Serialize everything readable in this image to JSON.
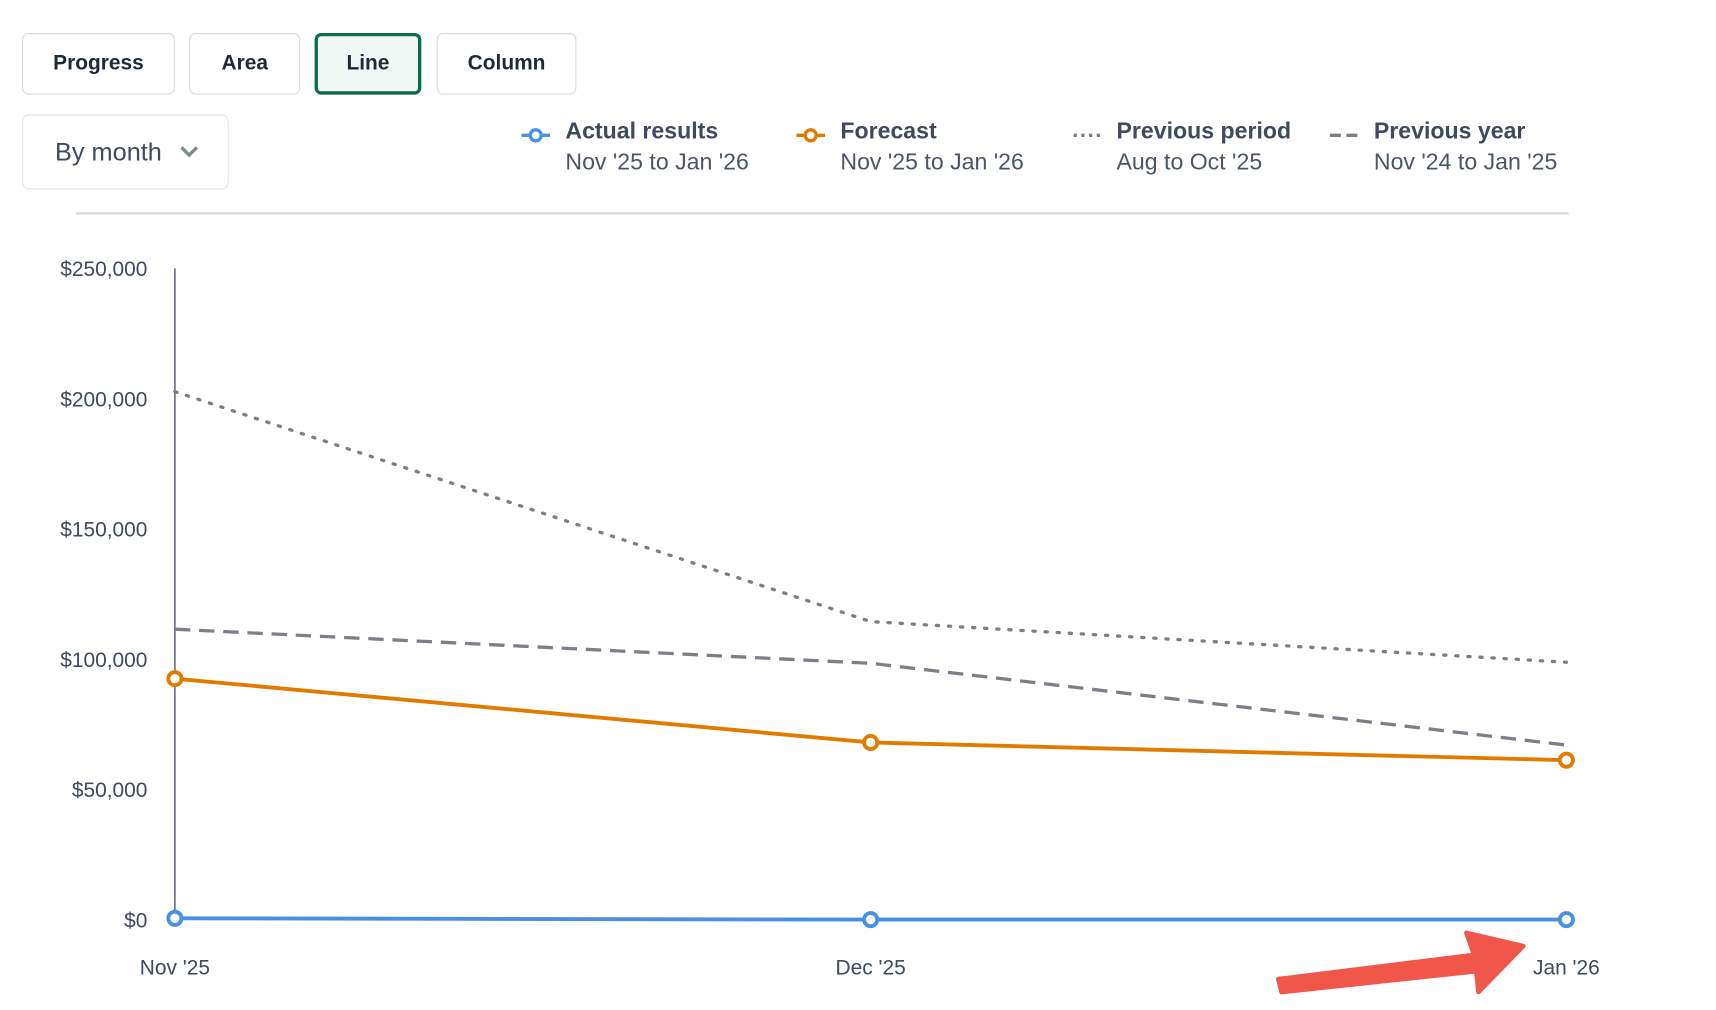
{
  "chart_types": [
    {
      "label": "Progress",
      "active": false
    },
    {
      "label": "Area",
      "active": false
    },
    {
      "label": "Line",
      "active": true
    },
    {
      "label": "Column",
      "active": false
    }
  ],
  "grouping": {
    "selected": "By month",
    "icon": "chevron-down-icon"
  },
  "legend": [
    {
      "name": "Actual results",
      "range": "Nov '25 to Jan '26",
      "style": "solid-marker",
      "color": "#4a90e2"
    },
    {
      "name": "Forecast",
      "range": "Nov '25 to Jan '26",
      "style": "solid-marker",
      "color": "#e07b00"
    },
    {
      "name": "Previous period",
      "range": "Aug to Oct '25",
      "style": "dotted",
      "color": "#7b7f88"
    },
    {
      "name": "Previous year",
      "range": "Nov '24 to Jan '25",
      "style": "dashed",
      "color": "#7b7f88"
    }
  ],
  "chart_data": {
    "type": "line",
    "categories": [
      "Nov '25",
      "Dec '25",
      "Jan '26"
    ],
    "y_ticks": [
      "$0",
      "$50,000",
      "$100,000",
      "$150,000",
      "$200,000",
      "$250,000"
    ],
    "ylim": [
      0,
      250000
    ],
    "grid": false,
    "legend_position": "top",
    "series": [
      {
        "name": "Actual results",
        "values": [
          500,
          0,
          0
        ],
        "color": "#4a90e2",
        "dash": "solid",
        "markers": true
      },
      {
        "name": "Forecast",
        "values": [
          92500,
          68000,
          61200
        ],
        "color": "#e07b00",
        "dash": "solid",
        "markers": true
      },
      {
        "name": "Previous period",
        "values": [
          202700,
          114400,
          98800
        ],
        "color": "#7b7f88",
        "dash": "dotted",
        "markers": false
      },
      {
        "name": "Previous year",
        "values": [
          111500,
          98400,
          67000
        ],
        "color": "#7b7f88",
        "dash": "dashed",
        "markers": false
      }
    ]
  },
  "annotation": {
    "type": "arrow",
    "color": "#f0564a",
    "points_to": "Jan '26"
  }
}
